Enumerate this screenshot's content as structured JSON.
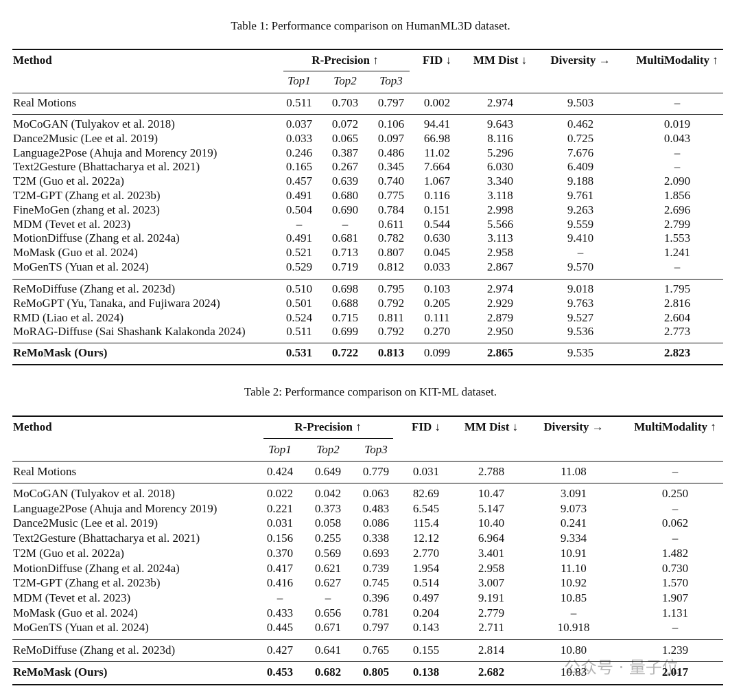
{
  "tables": [
    {
      "caption": "Table 1: Performance comparison on HumanML3D dataset.",
      "header": {
        "method": "Method",
        "rprecision": "R-Precision ↑",
        "sub": [
          "Top1",
          "Top2",
          "Top3"
        ],
        "metrics": [
          "FID ↓",
          "MM Dist ↓",
          "Diversity →",
          "MultiModality ↑"
        ]
      },
      "groups": [
        [
          [
            "Real Motions",
            "0.511",
            "0.703",
            "0.797",
            "0.002",
            "2.974",
            "9.503",
            "–"
          ]
        ],
        [
          [
            "MoCoGAN (Tulyakov et al. 2018)",
            "0.037",
            "0.072",
            "0.106",
            "94.41",
            "9.643",
            "0.462",
            "0.019"
          ],
          [
            "Dance2Music (Lee et al. 2019)",
            "0.033",
            "0.065",
            "0.097",
            "66.98",
            "8.116",
            "0.725",
            "0.043"
          ],
          [
            "Language2Pose (Ahuja and Morency 2019)",
            "0.246",
            "0.387",
            "0.486",
            "11.02",
            "5.296",
            "7.676",
            "–"
          ],
          [
            "Text2Gesture (Bhattacharya et al. 2021)",
            "0.165",
            "0.267",
            "0.345",
            "7.664",
            "6.030",
            "6.409",
            "–"
          ],
          [
            "T2M (Guo et al. 2022a)",
            "0.457",
            "0.639",
            "0.740",
            "1.067",
            "3.340",
            "9.188",
            "2.090"
          ],
          [
            "T2M-GPT (Zhang et al. 2023b)",
            "0.491",
            "0.680",
            "0.775",
            "0.116",
            "3.118",
            "9.761",
            "1.856"
          ],
          [
            "FineMoGen (zhang et al. 2023)",
            "0.504",
            "0.690",
            "0.784",
            "0.151",
            "2.998",
            "9.263",
            "2.696"
          ],
          [
            "MDM (Tevet et al. 2023)",
            "–",
            "–",
            "0.611",
            "0.544",
            "5.566",
            "9.559",
            "2.799"
          ],
          [
            "MotionDiffuse (Zhang et al. 2024a)",
            "0.491",
            "0.681",
            "0.782",
            "0.630",
            "3.113",
            "9.410",
            "1.553"
          ],
          [
            "MoMask (Guo et al. 2024)",
            "0.521",
            "0.713",
            "0.807",
            "0.045",
            "2.958",
            "–",
            "1.241"
          ],
          [
            "MoGenTS (Yuan et al. 2024)",
            "0.529",
            "0.719",
            "0.812",
            "0.033",
            "2.867",
            "9.570",
            "–"
          ]
        ],
        [
          [
            "ReMoDiffuse (Zhang et al. 2023d)",
            "0.510",
            "0.698",
            "0.795",
            "0.103",
            "2.974",
            "9.018",
            "1.795"
          ],
          [
            "ReMoGPT (Yu, Tanaka, and Fujiwara 2024)",
            "0.501",
            "0.688",
            "0.792",
            "0.205",
            "2.929",
            "9.763",
            "2.816"
          ],
          [
            "RMD (Liao et al. 2024)",
            "0.524",
            "0.715",
            "0.811",
            "0.111",
            "2.879",
            "9.527",
            "2.604"
          ],
          [
            "MoRAG-Diffuse (Sai Shashank Kalakonda 2024)",
            "0.511",
            "0.699",
            "0.792",
            "0.270",
            "2.950",
            "9.536",
            "2.773"
          ]
        ],
        [
          [
            "ReMoMask (Ours)",
            "0.531",
            "0.722",
            "0.813",
            "0.099",
            "2.865",
            "9.535",
            "2.823"
          ]
        ]
      ],
      "bold": [
        0,
        1,
        2,
        3,
        5,
        7
      ]
    },
    {
      "caption": "Table 2: Performance comparison on KIT-ML dataset.",
      "header": {
        "method": "Method",
        "rprecision": "R-Precision ↑",
        "sub": [
          "Top1",
          "Top2",
          "Top3"
        ],
        "metrics": [
          "FID ↓",
          "MM Dist ↓",
          "Diversity →",
          "MultiModality ↑"
        ]
      },
      "groups": [
        [
          [
            "Real Motions",
            "0.424",
            "0.649",
            "0.779",
            "0.031",
            "2.788",
            "11.08",
            "–"
          ]
        ],
        [
          [
            "MoCoGAN (Tulyakov et al. 2018)",
            "0.022",
            "0.042",
            "0.063",
            "82.69",
            "10.47",
            "3.091",
            "0.250"
          ],
          [
            "Language2Pose (Ahuja and Morency 2019)",
            "0.221",
            "0.373",
            "0.483",
            "6.545",
            "5.147",
            "9.073",
            "–"
          ],
          [
            "Dance2Music (Lee et al. 2019)",
            "0.031",
            "0.058",
            "0.086",
            "115.4",
            "10.40",
            "0.241",
            "0.062"
          ],
          [
            "Text2Gesture (Bhattacharya et al. 2021)",
            "0.156",
            "0.255",
            "0.338",
            "12.12",
            "6.964",
            "9.334",
            "–"
          ],
          [
            "T2M (Guo et al. 2022a)",
            "0.370",
            "0.569",
            "0.693",
            "2.770",
            "3.401",
            "10.91",
            "1.482"
          ],
          [
            "MotionDiffuse (Zhang et al. 2024a)",
            "0.417",
            "0.621",
            "0.739",
            "1.954",
            "2.958",
            "11.10",
            "0.730"
          ],
          [
            "T2M-GPT (Zhang et al. 2023b)",
            "0.416",
            "0.627",
            "0.745",
            "0.514",
            "3.007",
            "10.92",
            "1.570"
          ],
          [
            "MDM (Tevet et al. 2023)",
            "–",
            "–",
            "0.396",
            "0.497",
            "9.191",
            "10.85",
            "1.907"
          ],
          [
            "MoMask (Guo et al. 2024)",
            "0.433",
            "0.656",
            "0.781",
            "0.204",
            "2.779",
            "–",
            "1.131"
          ],
          [
            "MoGenTS (Yuan et al. 2024)",
            "0.445",
            "0.671",
            "0.797",
            "0.143",
            "2.711",
            "10.918",
            "–"
          ]
        ],
        [
          [
            "ReMoDiffuse (Zhang et al. 2023d)",
            "0.427",
            "0.641",
            "0.765",
            "0.155",
            "2.814",
            "10.80",
            "1.239"
          ]
        ],
        [
          [
            "ReMoMask (Ours)",
            "0.453",
            "0.682",
            "0.805",
            "0.138",
            "2.682",
            "10.83",
            "2.017"
          ]
        ]
      ],
      "bold": [
        0,
        1,
        2,
        3,
        4,
        5,
        7
      ]
    }
  ],
  "watermark": "公众号 · 量子位"
}
